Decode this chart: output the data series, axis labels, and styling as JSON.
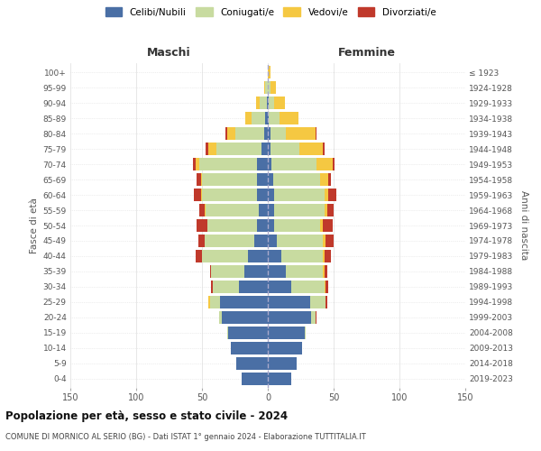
{
  "age_groups": [
    "0-4",
    "5-9",
    "10-14",
    "15-19",
    "20-24",
    "25-29",
    "30-34",
    "35-39",
    "40-44",
    "45-49",
    "50-54",
    "55-59",
    "60-64",
    "65-69",
    "70-74",
    "75-79",
    "80-84",
    "85-89",
    "90-94",
    "95-99",
    "100+"
  ],
  "birth_years": [
    "2019-2023",
    "2014-2018",
    "2009-2013",
    "2004-2008",
    "1999-2003",
    "1994-1998",
    "1989-1993",
    "1984-1988",
    "1979-1983",
    "1974-1978",
    "1969-1973",
    "1964-1968",
    "1959-1963",
    "1954-1958",
    "1949-1953",
    "1944-1948",
    "1939-1943",
    "1934-1938",
    "1929-1933",
    "1924-1928",
    "≤ 1923"
  ],
  "males": {
    "celibe": [
      20,
      24,
      28,
      30,
      35,
      36,
      22,
      18,
      15,
      10,
      8,
      7,
      8,
      8,
      8,
      5,
      3,
      2,
      1,
      0,
      0
    ],
    "coniugato": [
      0,
      0,
      0,
      1,
      2,
      8,
      20,
      25,
      35,
      38,
      38,
      40,
      42,
      42,
      44,
      34,
      22,
      10,
      5,
      2,
      0
    ],
    "vedovo": [
      0,
      0,
      0,
      0,
      0,
      1,
      0,
      0,
      0,
      0,
      0,
      1,
      1,
      1,
      3,
      6,
      6,
      5,
      3,
      1,
      0
    ],
    "divorziato": [
      0,
      0,
      0,
      0,
      0,
      0,
      1,
      1,
      5,
      5,
      8,
      4,
      5,
      3,
      2,
      2,
      1,
      0,
      0,
      0,
      0
    ]
  },
  "females": {
    "nubile": [
      18,
      22,
      26,
      28,
      33,
      32,
      18,
      14,
      10,
      7,
      5,
      5,
      5,
      4,
      3,
      2,
      2,
      1,
      1,
      0,
      0
    ],
    "coniugata": [
      0,
      0,
      0,
      1,
      3,
      12,
      25,
      28,
      32,
      35,
      35,
      38,
      38,
      36,
      34,
      22,
      12,
      8,
      4,
      2,
      0
    ],
    "vedova": [
      0,
      0,
      0,
      0,
      0,
      0,
      1,
      1,
      1,
      2,
      2,
      2,
      3,
      6,
      12,
      18,
      22,
      14,
      8,
      4,
      2
    ],
    "divorziata": [
      0,
      0,
      0,
      0,
      1,
      1,
      2,
      2,
      5,
      6,
      7,
      5,
      6,
      2,
      2,
      1,
      1,
      0,
      0,
      0,
      0
    ]
  },
  "colors": {
    "celibe": "#4a6fa5",
    "coniugato": "#c8dba0",
    "vedovo": "#f5c842",
    "divorziato": "#c0392b"
  },
  "title": "Popolazione per età, sesso e stato civile - 2024",
  "subtitle": "COMUNE DI MORNICO AL SERIO (BG) - Dati ISTAT 1° gennaio 2024 - Elaborazione TUTTITALIA.IT",
  "xlabel_left": "Maschi",
  "xlabel_right": "Femmine",
  "ylabel_left": "Fasce di età",
  "ylabel_right": "Anni di nascita",
  "legend_labels": [
    "Celibi/Nubili",
    "Coniugati/e",
    "Vedovi/e",
    "Divorziati/e"
  ],
  "xlim": 150,
  "bg_color": "#ffffff",
  "grid_color": "#cccccc"
}
